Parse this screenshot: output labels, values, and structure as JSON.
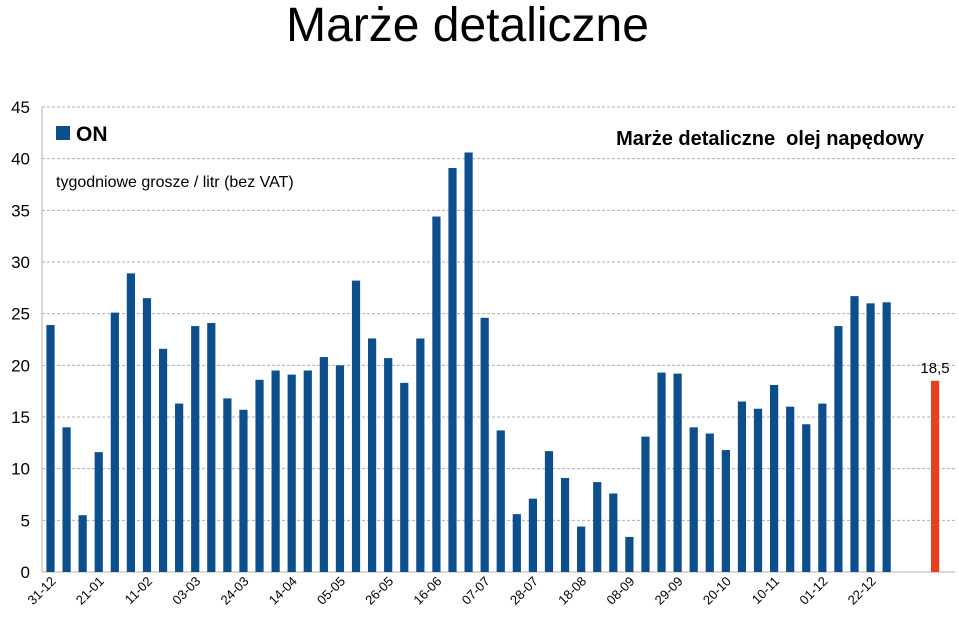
{
  "page": {
    "title": "Marże detaliczne"
  },
  "chart_data": {
    "type": "bar",
    "title": "Marże detaliczne  olej napędowy",
    "subtitle": "tygodniowe grosze / litr (bez VAT)",
    "xlabel": "",
    "ylabel": "",
    "ylim": [
      0,
      45
    ],
    "yticks": [
      "0",
      "5",
      "10",
      "15",
      "20",
      "25",
      "30",
      "35",
      "40",
      "45"
    ],
    "grid": true,
    "legend": {
      "position": "top-left",
      "entries": [
        {
          "name": "ON",
          "color": "#0c4f8c"
        }
      ]
    },
    "x_tick_labels": [
      "31-12",
      "21-01",
      "11-02",
      "03-03",
      "24-03",
      "14-04",
      "05-05",
      "26-05",
      "16-06",
      "07-07",
      "28-07",
      "18-08",
      "08-09",
      "29-09",
      "20-10",
      "10-11",
      "01-12",
      "22-12"
    ],
    "series": [
      {
        "name": "ON",
        "color": "#0c4f8c",
        "values": [
          23.9,
          14.0,
          5.5,
          11.6,
          25.1,
          28.9,
          26.5,
          21.6,
          16.3,
          23.8,
          24.1,
          16.8,
          15.7,
          18.6,
          19.5,
          19.1,
          19.5,
          20.8,
          20.0,
          28.2,
          22.6,
          20.7,
          18.3,
          22.6,
          34.4,
          39.1,
          40.6,
          24.6,
          13.7,
          5.6,
          7.1,
          11.7,
          9.1,
          4.4,
          8.7,
          7.6,
          3.4,
          13.1,
          19.3,
          19.2,
          14.0,
          13.4,
          11.8,
          16.5,
          15.8,
          18.1,
          16.0,
          14.3,
          16.3,
          23.8,
          26.7,
          26.0,
          26.1
        ]
      },
      {
        "name": "",
        "color": "#e8401c",
        "values": [
          18.5
        ],
        "data_labels": [
          "18,5"
        ]
      }
    ]
  }
}
